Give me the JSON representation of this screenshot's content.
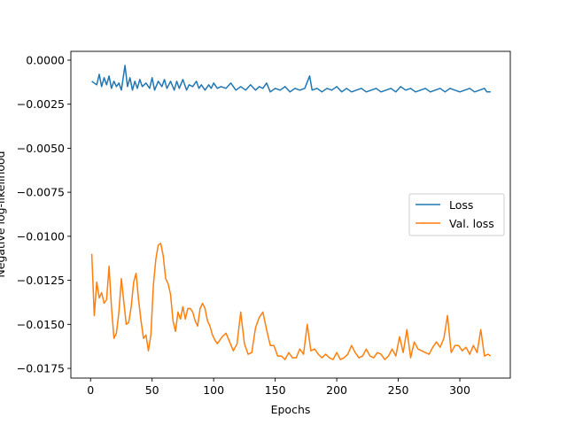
{
  "chart_data": {
    "type": "line",
    "title": "",
    "xlabel": "Epochs",
    "ylabel": "Negative log-likelihood",
    "xlim": [
      -16,
      341
    ],
    "ylim": [
      -0.01805,
      0.0005
    ],
    "xticks": [
      0,
      50,
      100,
      150,
      200,
      250,
      300
    ],
    "xtick_labels": [
      "0",
      "50",
      "100",
      "150",
      "200",
      "250",
      "300"
    ],
    "yticks": [
      0.0,
      -0.0025,
      -0.005,
      -0.0075,
      -0.01,
      -0.0125,
      -0.015,
      -0.0175
    ],
    "ytick_labels": [
      "0.0000",
      "−0.0025",
      "−0.0050",
      "−0.0075",
      "−0.0100",
      "−0.0125",
      "−0.0150",
      "−0.0175"
    ],
    "grid": false,
    "legend_position": "center-right",
    "series": [
      {
        "name": "Loss",
        "color": "#1f77b4",
        "x": [
          1,
          3,
          5,
          7,
          9,
          11,
          13,
          15,
          17,
          19,
          21,
          23,
          25,
          28,
          30,
          32,
          34,
          36,
          38,
          40,
          42,
          45,
          48,
          50,
          52,
          55,
          58,
          60,
          62,
          65,
          68,
          70,
          72,
          75,
          78,
          80,
          83,
          86,
          88,
          90,
          93,
          96,
          98,
          100,
          103,
          106,
          110,
          114,
          118,
          122,
          126,
          130,
          134,
          137,
          140,
          143,
          146,
          150,
          154,
          158,
          162,
          166,
          170,
          174,
          178,
          180,
          184,
          188,
          192,
          196,
          200,
          204,
          208,
          212,
          216,
          220,
          224,
          228,
          232,
          236,
          240,
          244,
          248,
          252,
          256,
          260,
          264,
          268,
          272,
          276,
          280,
          284,
          288,
          292,
          296,
          300,
          304,
          308,
          312,
          316,
          320,
          322,
          325
        ],
        "y": [
          -0.0012,
          -0.0013,
          -0.0014,
          -0.0008,
          -0.0015,
          -0.001,
          -0.0014,
          -0.0009,
          -0.0016,
          -0.0012,
          -0.0015,
          -0.0013,
          -0.0017,
          -0.0003,
          -0.0015,
          -0.001,
          -0.0017,
          -0.0012,
          -0.0016,
          -0.0011,
          -0.0015,
          -0.0013,
          -0.0016,
          -0.001,
          -0.0017,
          -0.0012,
          -0.0015,
          -0.0011,
          -0.0016,
          -0.0012,
          -0.0017,
          -0.0012,
          -0.0016,
          -0.0011,
          -0.0017,
          -0.0014,
          -0.0015,
          -0.0012,
          -0.0016,
          -0.0014,
          -0.0017,
          -0.0014,
          -0.0016,
          -0.0013,
          -0.0016,
          -0.0015,
          -0.0016,
          -0.0013,
          -0.0017,
          -0.0015,
          -0.0017,
          -0.0014,
          -0.0017,
          -0.0015,
          -0.0016,
          -0.0013,
          -0.0018,
          -0.0016,
          -0.0017,
          -0.0015,
          -0.0018,
          -0.0016,
          -0.0017,
          -0.0016,
          -0.0009,
          -0.0017,
          -0.0016,
          -0.0018,
          -0.0016,
          -0.0017,
          -0.0015,
          -0.0018,
          -0.0016,
          -0.0018,
          -0.0017,
          -0.0016,
          -0.0018,
          -0.0017,
          -0.0016,
          -0.0018,
          -0.0017,
          -0.0016,
          -0.0018,
          -0.0015,
          -0.0017,
          -0.0016,
          -0.0018,
          -0.0017,
          -0.0016,
          -0.0018,
          -0.0017,
          -0.0016,
          -0.0018,
          -0.0016,
          -0.0017,
          -0.0018,
          -0.0017,
          -0.0016,
          -0.0018,
          -0.0017,
          -0.0016,
          -0.0018,
          -0.0018
        ]
      },
      {
        "name": "Val. loss",
        "color": "#ff7f0e",
        "x": [
          1,
          3,
          5,
          7,
          9,
          11,
          13,
          15,
          17,
          19,
          21,
          23,
          25,
          27,
          29,
          31,
          33,
          35,
          37,
          39,
          41,
          43,
          45,
          47,
          49,
          51,
          53,
          55,
          57,
          59,
          61,
          63,
          65,
          67,
          69,
          71,
          73,
          75,
          77,
          79,
          81,
          83,
          85,
          87,
          89,
          91,
          93,
          95,
          97,
          99,
          101,
          103,
          105,
          107,
          110,
          113,
          116,
          119,
          122,
          125,
          128,
          131,
          134,
          137,
          140,
          143,
          146,
          149,
          152,
          155,
          158,
          161,
          164,
          167,
          170,
          173,
          176,
          179,
          182,
          185,
          188,
          191,
          194,
          197,
          200,
          203,
          206,
          209,
          212,
          215,
          218,
          221,
          224,
          227,
          230,
          233,
          236,
          239,
          242,
          245,
          248,
          251,
          254,
          257,
          260,
          263,
          266,
          269,
          272,
          275,
          278,
          281,
          284,
          287,
          290,
          293,
          296,
          299,
          302,
          305,
          308,
          311,
          314,
          317,
          320,
          323,
          325
        ],
        "y": [
          -0.011,
          -0.0145,
          -0.0126,
          -0.0135,
          -0.0132,
          -0.0138,
          -0.0136,
          -0.0117,
          -0.014,
          -0.0158,
          -0.0155,
          -0.0143,
          -0.0124,
          -0.0137,
          -0.015,
          -0.0149,
          -0.014,
          -0.0126,
          -0.0121,
          -0.0136,
          -0.0148,
          -0.0158,
          -0.0156,
          -0.0165,
          -0.0156,
          -0.0128,
          -0.0113,
          -0.0105,
          -0.0104,
          -0.0111,
          -0.0124,
          -0.0127,
          -0.0133,
          -0.0148,
          -0.0154,
          -0.0143,
          -0.0147,
          -0.014,
          -0.0147,
          -0.0141,
          -0.0141,
          -0.0143,
          -0.0148,
          -0.0151,
          -0.0141,
          -0.0138,
          -0.0141,
          -0.0148,
          -0.0151,
          -0.0156,
          -0.0159,
          -0.0161,
          -0.0159,
          -0.0157,
          -0.0155,
          -0.016,
          -0.0165,
          -0.0161,
          -0.0143,
          -0.0161,
          -0.0167,
          -0.0166,
          -0.0152,
          -0.0146,
          -0.0143,
          -0.0153,
          -0.0162,
          -0.0162,
          -0.0168,
          -0.0168,
          -0.017,
          -0.0166,
          -0.0169,
          -0.0169,
          -0.0164,
          -0.0167,
          -0.015,
          -0.0165,
          -0.0164,
          -0.0167,
          -0.0169,
          -0.0167,
          -0.0169,
          -0.017,
          -0.0166,
          -0.017,
          -0.0169,
          -0.0167,
          -0.0162,
          -0.0166,
          -0.0169,
          -0.0168,
          -0.0164,
          -0.0168,
          -0.0169,
          -0.0166,
          -0.0167,
          -0.017,
          -0.0168,
          -0.0164,
          -0.0168,
          -0.0157,
          -0.0166,
          -0.0153,
          -0.0169,
          -0.016,
          -0.0164,
          -0.0165,
          -0.0166,
          -0.0167,
          -0.0163,
          -0.016,
          -0.0163,
          -0.0158,
          -0.0145,
          -0.0166,
          -0.0162,
          -0.0162,
          -0.0165,
          -0.0163,
          -0.0167,
          -0.0162,
          -0.0166,
          -0.0153,
          -0.0168,
          -0.0167,
          -0.0168
        ]
      }
    ]
  }
}
